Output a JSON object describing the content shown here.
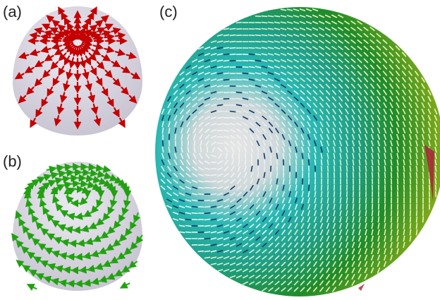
{
  "figure": {
    "panels": [
      {
        "label": "(a)",
        "description_color": "#c80000",
        "field": "radial"
      },
      {
        "label": "(b)",
        "description_color": "#22b014",
        "field": "circular"
      },
      {
        "label": "(c)",
        "description_color": "#1f7f2a",
        "field": "vortex"
      }
    ],
    "colors": {
      "sphere": "#d9d6e1",
      "sphere_shadow": "#b9b5c4",
      "red_arrow": "#c40000",
      "green_arrow": "#28b414",
      "vortex_core": "#d0d0d0",
      "vortex_mid": "#1fb7b0",
      "vortex_dark": "#123a6a",
      "vortex_outer": "#248a1e",
      "vortex_edge": "#b8b214",
      "defect": "#a8283a"
    }
  }
}
